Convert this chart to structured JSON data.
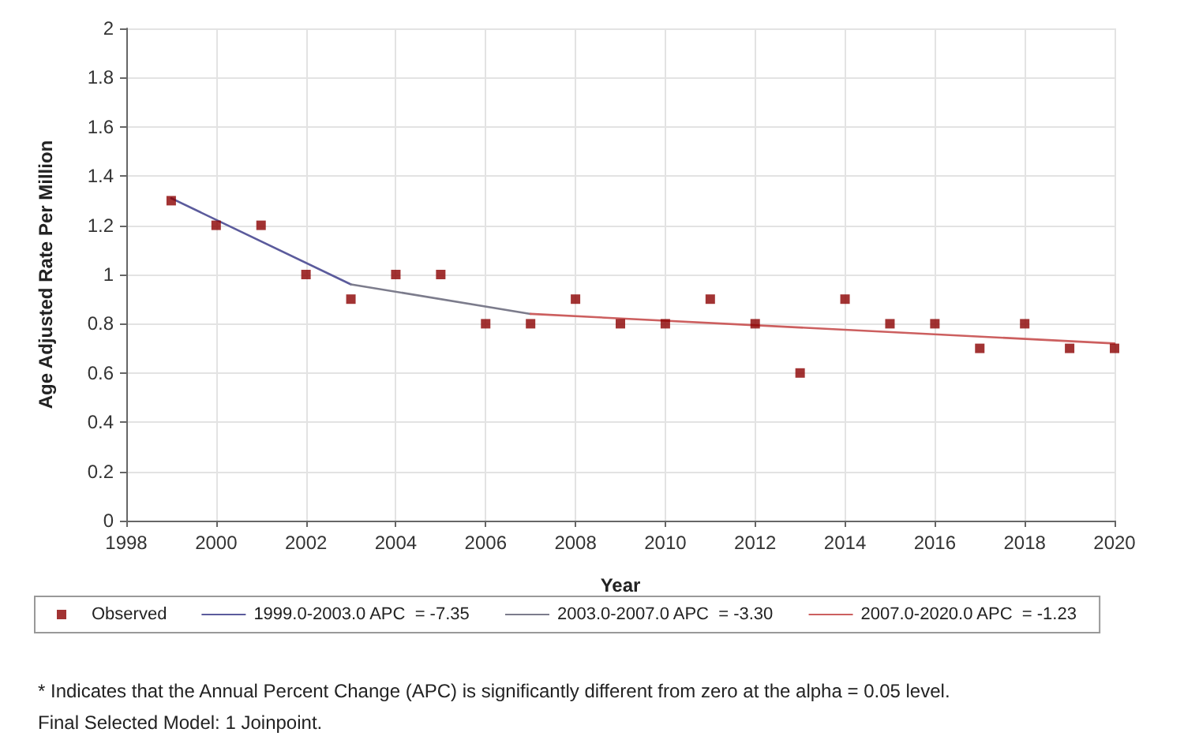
{
  "chart_data": {
    "type": "scatter",
    "xlabel": "Year",
    "ylabel": "Age Adjusted Rate Per Million",
    "xlim": [
      1998,
      2020
    ],
    "xticks": [
      1998,
      2000,
      2002,
      2004,
      2006,
      2008,
      2010,
      2012,
      2014,
      2016,
      2018,
      2020
    ],
    "ylim": [
      0,
      2
    ],
    "yticks": [
      0,
      0.2,
      0.4,
      0.6,
      0.8,
      1,
      1.2,
      1.4,
      1.6,
      1.8,
      2
    ],
    "grid": true,
    "legend": "bottom",
    "series": [
      {
        "name": "Observed",
        "marker": "square",
        "color": "#8b0000",
        "x": [
          1999,
          2000,
          2001,
          2002,
          2003,
          2004,
          2005,
          2006,
          2007,
          2008,
          2009,
          2010,
          2011,
          2012,
          2013,
          2014,
          2015,
          2016,
          2017,
          2018,
          2019,
          2020
        ],
        "values": [
          1.3,
          1.2,
          1.2,
          1.0,
          0.9,
          1.0,
          1.0,
          0.8,
          0.8,
          0.9,
          0.8,
          0.8,
          0.9,
          0.8,
          0.6,
          0.9,
          0.8,
          0.8,
          0.7,
          0.8,
          0.7,
          0.7
        ]
      },
      {
        "name": "1999.0-2003.0 APC  = -7.35",
        "type": "line",
        "marker": "none",
        "color": "#5b5b9c",
        "x": [
          1999,
          2003
        ],
        "values": [
          1.31,
          0.96
        ]
      },
      {
        "name": "2003.0-2007.0 APC  = -3.30",
        "type": "line",
        "marker": "none",
        "color": "#7c7c8c",
        "x": [
          2003,
          2007
        ],
        "values": [
          0.96,
          0.84
        ]
      },
      {
        "name": "2007.0-2020.0 APC  = -1.23",
        "type": "line",
        "marker": "none",
        "color": "#cc5f5f",
        "x": [
          2007,
          2020
        ],
        "values": [
          0.84,
          0.72
        ]
      }
    ],
    "annotations": [
      "* Indicates that the Annual Percent Change (APC) is significantly different from zero at the alpha = 0.05 level.",
      "Final Selected Model: 1 Joinpoint."
    ]
  }
}
